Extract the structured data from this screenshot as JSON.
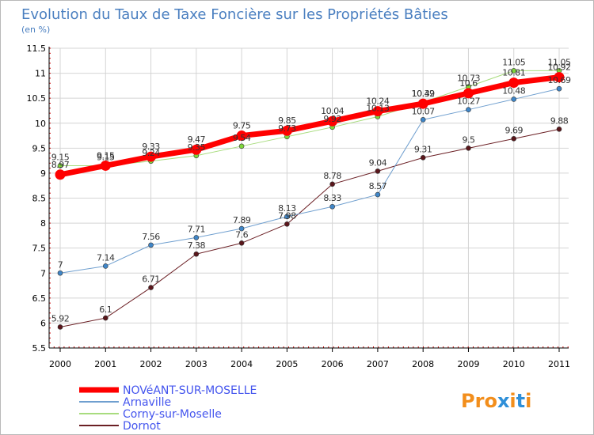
{
  "chart_data": {
    "type": "line",
    "title": "Evolution du Taux de Taxe Foncière sur les Propriétés Bâties",
    "subtitle": "(en %)",
    "xlabel": "",
    "ylabel": "",
    "categories": [
      "2000",
      "2001",
      "2002",
      "2003",
      "2004",
      "2005",
      "2006",
      "2007",
      "2008",
      "2009",
      "2010",
      "2011"
    ],
    "ylim": [
      5.5,
      11.5
    ],
    "yticks": [
      "5.5",
      "6",
      "6.5",
      "7",
      "7.5",
      "8",
      "8.5",
      "9",
      "9.5",
      "10",
      "10.5",
      "11",
      "11.5"
    ],
    "grid": true,
    "series": [
      {
        "name": "Dornot",
        "color": "#6b1f24",
        "marker": "#5a161b",
        "line_width": 1,
        "values": [
          5.92,
          6.1,
          6.71,
          7.38,
          7.6,
          7.98,
          8.78,
          9.04,
          9.31,
          9.5,
          9.69,
          9.88
        ],
        "labels": [
          "5.92",
          "6.1",
          "6.71",
          "7.38",
          "7.6",
          "7.98",
          "8.78",
          "9.04",
          "9.31",
          "9.5",
          "9.69",
          "9.88"
        ]
      },
      {
        "name": "Arnaville",
        "color": "#6f9fcf",
        "marker": "#3f86c8",
        "line_width": 1,
        "values": [
          7,
          7.14,
          7.56,
          7.71,
          7.89,
          8.13,
          8.33,
          8.57,
          10.07,
          10.27,
          10.48,
          10.69
        ],
        "labels": [
          "7",
          "7.14",
          "7.56",
          "7.71",
          "7.89",
          "8.13",
          "8.33",
          "8.57",
          "10.07",
          "10.27",
          "10.48",
          "10.69"
        ]
      },
      {
        "name": "Corny-sur-Moselle",
        "color": "#a8dc7e",
        "marker": "#7ed63a",
        "line_width": 1,
        "values": [
          9.15,
          9.15,
          9.24,
          9.35,
          9.54,
          9.73,
          9.92,
          10.13,
          10.42,
          10.73,
          11.05,
          11.05
        ],
        "labels": [
          "9.15",
          "9.15",
          "9.24",
          "9.35",
          "9.54",
          "9.73",
          "9.92",
          "10.13",
          "10.42",
          "10.73",
          "11.05",
          "11.05"
        ]
      },
      {
        "name": "NOVéANT-SUR-MOSELLE",
        "color": "#ff0000",
        "marker": "#ff0000",
        "line_width": 7,
        "values": [
          8.97,
          9.15,
          9.33,
          9.47,
          9.75,
          9.85,
          10.04,
          10.24,
          10.39,
          10.6,
          10.81,
          10.92
        ],
        "labels": [
          "8.97",
          "9.15",
          "9.33",
          "9.47",
          "9.75",
          "9.85",
          "10.04",
          "10.24",
          "10.39",
          "10.6",
          "10.81",
          "10.92"
        ]
      }
    ],
    "legend": {
      "placement": "bottom-left",
      "order": [
        "NOVéANT-SUR-MOSELLE",
        "Arnaville",
        "Corny-sur-Moselle",
        "Dornot"
      ]
    }
  },
  "logo": {
    "text": "Proxiti"
  },
  "colors": {
    "title": "#4a7fc0",
    "legend_text": "#4455ee",
    "axis": "#000000",
    "grid": "#d4d4d4"
  }
}
